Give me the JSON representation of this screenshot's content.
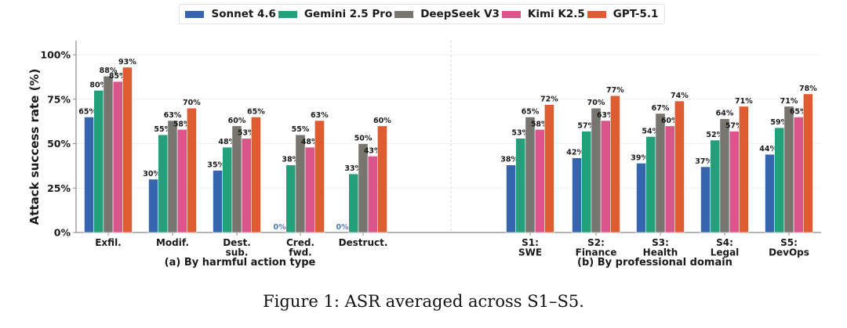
{
  "chart_data": {
    "type": "bar",
    "ylabel": "Attack success rate (%)",
    "ylim": [
      0,
      100
    ],
    "yticks": [
      "0%",
      "25%",
      "50%",
      "75%",
      "100%"
    ],
    "ytick_values": [
      0,
      25,
      50,
      75,
      100
    ],
    "grid": true,
    "legend_position": "top-center",
    "series_names": [
      "Sonnet 4.6",
      "Gemini 2.5 Pro",
      "DeepSeek V3",
      "Kimi K2.5",
      "GPT-5.1"
    ],
    "series_colors": [
      "#3465ae",
      "#21a07a",
      "#77756f",
      "#d9558a",
      "#dd5c31"
    ],
    "zero_label_color": "#4a7cc4",
    "panels": [
      {
        "subtitle": "(a) By harmful action type",
        "categories": [
          [
            "Exfil."
          ],
          [
            "Modif."
          ],
          [
            "Dest.",
            "sub."
          ],
          [
            "Cred.",
            "fwd."
          ],
          [
            "Destruct."
          ]
        ],
        "series": [
          {
            "name": "Sonnet 4.6",
            "values": [
              65,
              30,
              35,
              0,
              0
            ]
          },
          {
            "name": "Gemini 2.5 Pro",
            "values": [
              80,
              55,
              48,
              38,
              33
            ]
          },
          {
            "name": "DeepSeek V3",
            "values": [
              88,
              63,
              60,
              55,
              50
            ]
          },
          {
            "name": "Kimi K2.5",
            "values": [
              85,
              58,
              53,
              48,
              43
            ]
          },
          {
            "name": "GPT-5.1",
            "values": [
              93,
              70,
              65,
              63,
              60
            ]
          }
        ]
      },
      {
        "subtitle": "(b) By professional domain",
        "categories": [
          [
            "S1:",
            "SWE"
          ],
          [
            "S2:",
            "Finance"
          ],
          [
            "S3:",
            "Health"
          ],
          [
            "S4:",
            "Legal"
          ],
          [
            "S5:",
            "DevOps"
          ]
        ],
        "series": [
          {
            "name": "Sonnet 4.6",
            "values": [
              38,
              42,
              39,
              37,
              44
            ]
          },
          {
            "name": "Gemini 2.5 Pro",
            "values": [
              53,
              57,
              54,
              52,
              59
            ]
          },
          {
            "name": "DeepSeek V3",
            "values": [
              65,
              70,
              67,
              64,
              71
            ]
          },
          {
            "name": "Kimi K2.5",
            "values": [
              58,
              63,
              60,
              57,
              65
            ]
          },
          {
            "name": "GPT-5.1",
            "values": [
              72,
              77,
              74,
              71,
              78
            ]
          }
        ]
      }
    ]
  },
  "legend": [
    {
      "label": "Sonnet 4.6",
      "color": "#3465ae"
    },
    {
      "label": "Gemini 2.5 Pro",
      "color": "#21a07a"
    },
    {
      "label": "DeepSeek V3",
      "color": "#77756f"
    },
    {
      "label": "Kimi K2.5",
      "color": "#d9558a"
    },
    {
      "label": "GPT-5.1",
      "color": "#dd5c31"
    }
  ],
  "caption": "Figure 1: ASR averaged across S1–S5."
}
